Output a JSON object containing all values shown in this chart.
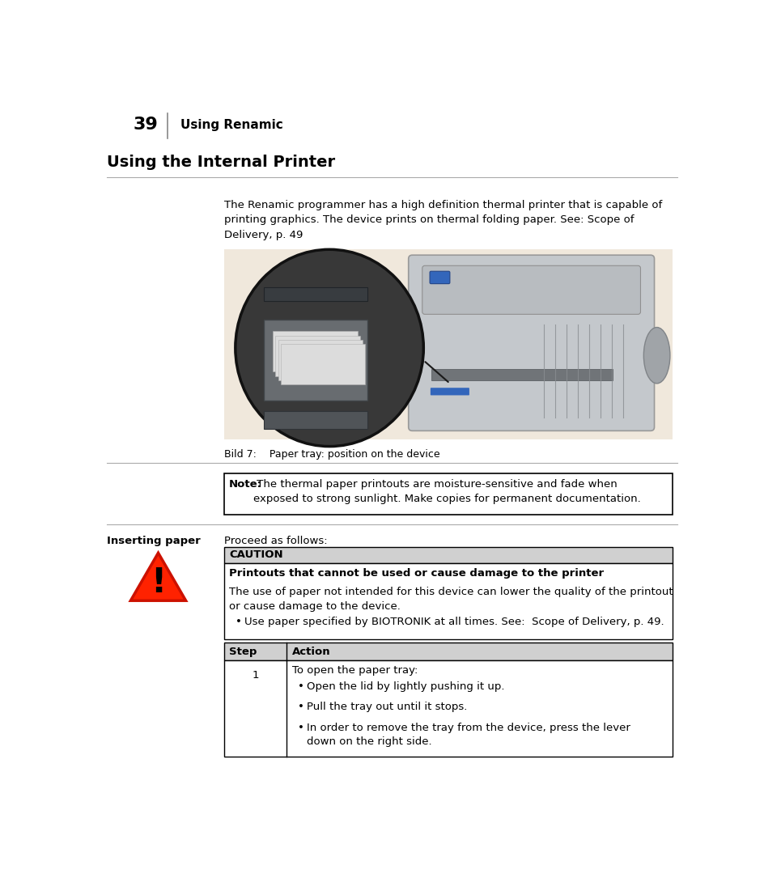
{
  "page_number": "39",
  "page_header_text": "Using Renamic",
  "section_title": "Using the Internal Printer",
  "body_text": "The Renamic programmer has a high definition thermal printer that is capable of\nprinting graphics. The device prints on thermal folding paper. See: Scope of\nDelivery, p. 49",
  "figure_caption": "Bild 7:    Paper tray: position on the device",
  "note_label": "Note:",
  "note_text": " The thermal paper printouts are moisture-sensitive and fade when\nexposed to strong sunlight. Make copies for permanent documentation.",
  "inserting_paper_label": "Inserting paper",
  "inserting_paper_text": "Proceed as follows:",
  "caution_header": "CAUTION",
  "caution_title": "Printouts that cannot be used or cause damage to the printer",
  "caution_body": "The use of paper not intended for this device can lower the quality of the printout\nor cause damage to the device.",
  "caution_bullet": "Use paper specified by BIOTRONIK at all times. See:  Scope of Delivery, p. 49.",
  "step_col": "Step",
  "action_col": "Action",
  "step_number": "1",
  "step_action_title": "To open the paper tray:",
  "step_bullets": [
    "Open the lid by lightly pushing it up.",
    "Pull the tray out until it stops.",
    "In order to remove the tray from the device, press the lever\ndown on the right side."
  ],
  "bg_color": "#ffffff",
  "text_color": "#000000",
  "line_color": "#aaaaaa",
  "note_box_border": "#000000",
  "caution_header_bg": "#d0d0d0",
  "table_header_bg": "#d0d0d0",
  "table_border": "#000000",
  "triangle_fill": "#ff2200",
  "triangle_edge": "#cc1100"
}
